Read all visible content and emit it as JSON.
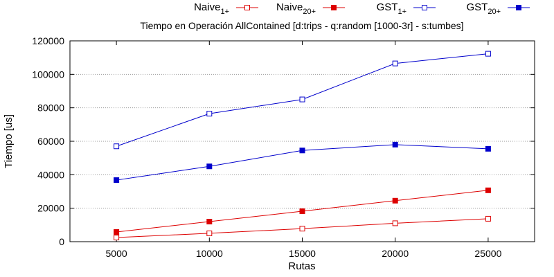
{
  "chart_data": {
    "type": "line",
    "title": "Tiempo en Operación AllContained [d:trips - q:random [1000-3r] - s:tumbes]",
    "xlabel": "Rutas",
    "ylabel": "Tiempo [us]",
    "xlim": [
      2500,
      27500
    ],
    "ylim": [
      0,
      120000
    ],
    "xticks": [
      5000,
      10000,
      15000,
      20000,
      25000
    ],
    "yticks": [
      0,
      20000,
      40000,
      60000,
      80000,
      100000,
      120000
    ],
    "grid": "horizontal dotted",
    "legend_position": "top-right, outside plot",
    "x": [
      5000,
      10000,
      15000,
      20000,
      25000
    ],
    "series": [
      {
        "name": "Naive",
        "sub": "1+",
        "color": "#dd0000",
        "marker": "open-square",
        "values": [
          2500,
          5000,
          7800,
          11000,
          13700
        ]
      },
      {
        "name": "Naive",
        "sub": "20+",
        "color": "#dd0000",
        "marker": "filled-square",
        "values": [
          5800,
          12000,
          18200,
          24500,
          30700
        ]
      },
      {
        "name": "GST",
        "sub": "1+",
        "color": "#0000cc",
        "marker": "open-square",
        "values": [
          57000,
          76500,
          85000,
          106500,
          112300
        ]
      },
      {
        "name": "GST",
        "sub": "20+",
        "color": "#0000cc",
        "marker": "filled-square",
        "values": [
          36800,
          45000,
          54500,
          58000,
          55500
        ]
      }
    ]
  }
}
